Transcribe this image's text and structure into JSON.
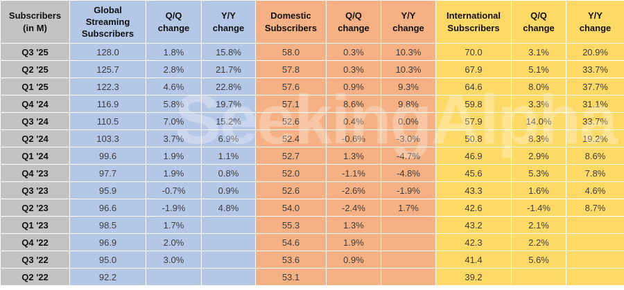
{
  "watermark": {
    "text": "SeekingAlpha"
  },
  "chart_data": {
    "type": "table",
    "colors": {
      "label": "#c3c3c3",
      "global": "#b4c7e7",
      "domestic": "#f5b183",
      "international": "#ffd966"
    },
    "columns": [
      {
        "id": "quarter",
        "label": "Subscribers (in M)",
        "group": "label"
      },
      {
        "id": "global",
        "label": "Global Streaming Subscribers",
        "group": "global"
      },
      {
        "id": "global_qq",
        "label": "Q/Q change",
        "group": "global"
      },
      {
        "id": "global_yy",
        "label": "Y/Y change",
        "group": "global"
      },
      {
        "id": "domestic",
        "label": "Domestic Subscribers",
        "group": "domestic"
      },
      {
        "id": "domestic_qq",
        "label": "Q/Q change",
        "group": "domestic"
      },
      {
        "id": "domestic_yy",
        "label": "Y/Y change",
        "group": "domestic"
      },
      {
        "id": "intl",
        "label": "International Subscribers",
        "group": "international"
      },
      {
        "id": "intl_qq",
        "label": "Q/Q change",
        "group": "international"
      },
      {
        "id": "intl_yy",
        "label": "Y/Y change",
        "group": "international"
      }
    ],
    "rows": [
      {
        "quarter": "Q3 '25",
        "global": "128.0",
        "global_qq": "1.8%",
        "global_yy": "15.8%",
        "domestic": "58.0",
        "domestic_qq": "0.3%",
        "domestic_yy": "10.3%",
        "intl": "70.0",
        "intl_qq": "3.1%",
        "intl_yy": "20.9%"
      },
      {
        "quarter": "Q2 '25",
        "global": "125.7",
        "global_qq": "2.8%",
        "global_yy": "21.7%",
        "domestic": "57.8",
        "domestic_qq": "0.3%",
        "domestic_yy": "10.3%",
        "intl": "67.9",
        "intl_qq": "5.1%",
        "intl_yy": "33.7%"
      },
      {
        "quarter": "Q1 '25",
        "global": "122.3",
        "global_qq": "4.6%",
        "global_yy": "22.8%",
        "domestic": "57.6",
        "domestic_qq": "0.9%",
        "domestic_yy": "9.3%",
        "intl": "64.6",
        "intl_qq": "8.0%",
        "intl_yy": "37.7%"
      },
      {
        "quarter": "Q4 '24",
        "global": "116.9",
        "global_qq": "5.8%",
        "global_yy": "19.7%",
        "domestic": "57.1",
        "domestic_qq": "8.6%",
        "domestic_yy": "9.8%",
        "intl": "59.8",
        "intl_qq": "3.3%",
        "intl_yy": "31.1%"
      },
      {
        "quarter": "Q3 '24",
        "global": "110.5",
        "global_qq": "7.0%",
        "global_yy": "15.2%",
        "domestic": "52.6",
        "domestic_qq": "0.4%",
        "domestic_yy": "0.0%",
        "intl": "57.9",
        "intl_qq": "14.0%",
        "intl_yy": "33.7%"
      },
      {
        "quarter": "Q2 '24",
        "global": "103.3",
        "global_qq": "3.7%",
        "global_yy": "6.9%",
        "domestic": "52.4",
        "domestic_qq": "-0.6%",
        "domestic_yy": "-3.0%",
        "intl": "50.8",
        "intl_qq": "8.3%",
        "intl_yy": "19.2%"
      },
      {
        "quarter": "Q1 '24",
        "global": "99.6",
        "global_qq": "1.9%",
        "global_yy": "1.1%",
        "domestic": "52.7",
        "domestic_qq": "1.3%",
        "domestic_yy": "-4.7%",
        "intl": "46.9",
        "intl_qq": "2.9%",
        "intl_yy": "8.6%"
      },
      {
        "quarter": "Q4 '23",
        "global": "97.7",
        "global_qq": "1.9%",
        "global_yy": "0.8%",
        "domestic": "52.0",
        "domestic_qq": "-1.1%",
        "domestic_yy": "-4.8%",
        "intl": "45.6",
        "intl_qq": "5.3%",
        "intl_yy": "7.8%"
      },
      {
        "quarter": "Q3 '23",
        "global": "95.9",
        "global_qq": "-0.7%",
        "global_yy": "0.9%",
        "domestic": "52.6",
        "domestic_qq": "-2.6%",
        "domestic_yy": "-1.9%",
        "intl": "43.3",
        "intl_qq": "1.6%",
        "intl_yy": "4.6%"
      },
      {
        "quarter": "Q2 '23",
        "global": "96.6",
        "global_qq": "-1.9%",
        "global_yy": "4.8%",
        "domestic": "54.0",
        "domestic_qq": "-2.4%",
        "domestic_yy": "1.7%",
        "intl": "42.6",
        "intl_qq": "-1.4%",
        "intl_yy": "8.7%"
      },
      {
        "quarter": "Q1 '23",
        "global": "98.5",
        "global_qq": "1.7%",
        "global_yy": "",
        "domestic": "55.3",
        "domestic_qq": "1.3%",
        "domestic_yy": "",
        "intl": "43.2",
        "intl_qq": "2.1%",
        "intl_yy": ""
      },
      {
        "quarter": "Q4 '22",
        "global": "96.9",
        "global_qq": "2.0%",
        "global_yy": "",
        "domestic": "54.6",
        "domestic_qq": "1.9%",
        "domestic_yy": "",
        "intl": "42.3",
        "intl_qq": "2.2%",
        "intl_yy": ""
      },
      {
        "quarter": "Q3 '22",
        "global": "95.0",
        "global_qq": "3.0%",
        "global_yy": "",
        "domestic": "53.6",
        "domestic_qq": "0.9%",
        "domestic_yy": "",
        "intl": "41.4",
        "intl_qq": "5.6%",
        "intl_yy": ""
      },
      {
        "quarter": "Q2 '22",
        "global": "92.2",
        "global_qq": "",
        "global_yy": "",
        "domestic": "53.1",
        "domestic_qq": "",
        "domestic_yy": "",
        "intl": "39.2",
        "intl_qq": "",
        "intl_yy": ""
      }
    ]
  }
}
